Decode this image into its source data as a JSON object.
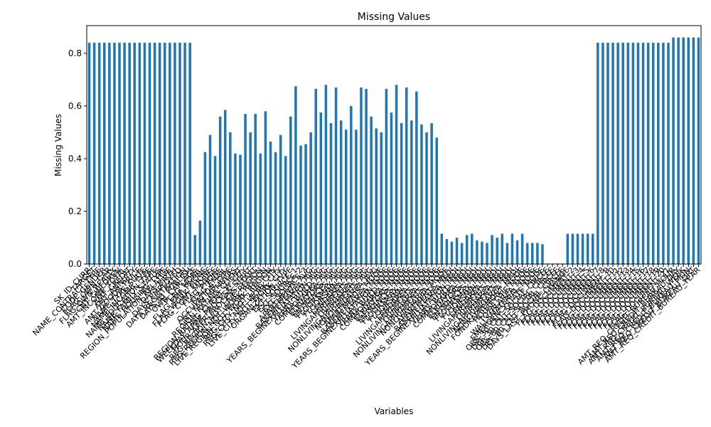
{
  "chart_data": {
    "type": "bar",
    "title": "Missing Values",
    "x_label": "Variables",
    "y_label": "Missing Values",
    "color": "#1f77b4",
    "categories": [
      "SK_ID_CURR",
      "TARGET",
      "NAME_CONTRACT_TYPE",
      "CODE_GENDER",
      "FLAG_OWN_CAR",
      "FLAG_OWN_REALTY",
      "CNT_CHILDREN",
      "AMT_INCOME_TOTAL",
      "AMT_CREDIT",
      "AMT_ANNUITY",
      "AMT_GOODS_PRICE",
      "NAME_TYPE_SUITE",
      "NAME_INCOME_TYPE",
      "NAME_EDUCATION_TYPE",
      "NAME_FAMILY_STATUS",
      "NAME_HOUSING_TYPE",
      "REGION_POPULATION_RELATIVE",
      "DAYS_BIRTH",
      "DAYS_EMPLOYED",
      "DAYS_REGISTRATION",
      "DAYS_ID_PUBLISH",
      "OWN_CAR_AGE",
      "FLAG_MOBIL",
      "FLAG_EMP_PHONE",
      "FLAG_WORK_PHONE",
      "FLAG_CONT_MOBILE",
      "FLAG_PHONE",
      "FLAG_EMAIL",
      "OCCUPATION_TYPE",
      "CNT_FAM_MEMBERS",
      "REGION_RATING_CLIENT",
      "REGION_RATING_CLIENT_W_CITY",
      "WEEKDAY_APPR_PROCESS_START",
      "HOUR_APPR_PROCESS_START",
      "REG_REGION_NOT_LIVE_REGION",
      "REG_REGION_NOT_WORK_REGION",
      "LIVE_REGION_NOT_WORK_REGION",
      "REG_CITY_NOT_LIVE_CITY",
      "REG_CITY_NOT_WORK_CITY",
      "LIVE_CITY_NOT_WORK_CITY",
      "ORGANIZATION_TYPE",
      "EXT_SOURCE_1",
      "EXT_SOURCE_2",
      "EXT_SOURCE_3",
      "APARTMENTS_AVG",
      "BASEMENTAREA_AVG",
      "YEARS_BEGINEXPLUATATION_AVG",
      "YEARS_BUILD_AVG",
      "COMMONAREA_AVG",
      "ELEVATORS_AVG",
      "ENTRANCES_AVG",
      "FLOORSMAX_AVG",
      "FLOORSMIN_AVG",
      "LANDAREA_AVG",
      "LIVINGAPARTMENTS_AVG",
      "LIVINGAREA_AVG",
      "NONLIVINGAPARTMENTS_AVG",
      "NONLIVINGAREA_AVG",
      "APARTMENTS_MODE",
      "BASEMENTAREA_MODE",
      "YEARS_BEGINEXPLUATATION_MODE",
      "YEARS_BUILD_MODE",
      "COMMONAREA_MODE",
      "ELEVATORS_MODE",
      "ENTRANCES_MODE",
      "FLOORSMAX_MODE",
      "FLOORSMIN_MODE",
      "LANDAREA_MODE",
      "LIVINGAPARTMENTS_MODE",
      "LIVINGAREA_MODE",
      "NONLIVINGAPARTMENTS_MODE",
      "NONLIVINGAREA_MODE",
      "APARTMENTS_MEDI",
      "BASEMENTAREA_MEDI",
      "YEARS_BEGINEXPLUATATION_MEDI",
      "YEARS_BUILD_MEDI",
      "COMMONAREA_MEDI",
      "ELEVATORS_MEDI",
      "ENTRANCES_MEDI",
      "FLOORSMAX_MEDI",
      "FLOORSMIN_MEDI",
      "LANDAREA_MEDI",
      "LIVINGAPARTMENTS_MEDI",
      "LIVINGAREA_MEDI",
      "NONLIVINGAPARTMENTS_MEDI",
      "NONLIVINGAREA_MEDI",
      "FONDKAPREMONT_MODE",
      "HOUSETYPE_MODE",
      "TOTALAREA_MODE",
      "WALLSMATERIAL_MODE",
      "EMERGENCYSTATE_MODE",
      "OBS_30_CNT_SOCIAL_CIRCLE",
      "DEF_30_CNT_SOCIAL_CIRCLE",
      "OBS_60_CNT_SOCIAL_CIRCLE",
      "DEF_60_CNT_SOCIAL_CIRCLE",
      "DAYS_LAST_PHONE_CHANGE",
      "FLAG_DOCUMENT_2",
      "FLAG_DOCUMENT_3",
      "FLAG_DOCUMENT_4",
      "FLAG_DOCUMENT_5",
      "FLAG_DOCUMENT_6",
      "FLAG_DOCUMENT_7",
      "FLAG_DOCUMENT_8",
      "FLAG_DOCUMENT_9",
      "FLAG_DOCUMENT_10",
      "FLAG_DOCUMENT_11",
      "FLAG_DOCUMENT_12",
      "FLAG_DOCUMENT_13",
      "FLAG_DOCUMENT_14",
      "FLAG_DOCUMENT_15",
      "FLAG_DOCUMENT_16",
      "FLAG_DOCUMENT_17",
      "FLAG_DOCUMENT_18",
      "FLAG_DOCUMENT_19",
      "FLAG_DOCUMENT_20",
      "FLAG_DOCUMENT_21",
      "AMT_REQ_CREDIT_BUREAU_HOUR",
      "AMT_REQ_CREDIT_BUREAU_DAY",
      "AMT_REQ_CREDIT_BUREAU_WEEK",
      "AMT_REQ_CREDIT_BUREAU_MON",
      "AMT_REQ_CREDIT_BUREAU_QRT",
      "AMT_REQ_CREDIT_BUREAU_YEAR"
    ],
    "values": [
      0.84,
      0.84,
      0.84,
      0.84,
      0.84,
      0.84,
      0.84,
      0.84,
      0.84,
      0.84,
      0.84,
      0.84,
      0.84,
      0.84,
      0.84,
      0.84,
      0.84,
      0.84,
      0.84,
      0.84,
      0.84,
      0.11,
      0.165,
      0.425,
      0.49,
      0.41,
      0.56,
      0.585,
      0.5,
      0.42,
      0.415,
      0.57,
      0.5,
      0.57,
      0.42,
      0.58,
      0.465,
      0.425,
      0.49,
      0.41,
      0.56,
      0.675,
      0.45,
      0.455,
      0.5,
      0.665,
      0.575,
      0.68,
      0.535,
      0.67,
      0.545,
      0.51,
      0.6,
      0.51,
      0.67,
      0.665,
      0.56,
      0.515,
      0.5,
      0.665,
      0.575,
      0.68,
      0.535,
      0.67,
      0.545,
      0.655,
      0.53,
      0.5,
      0.535,
      0.48,
      0.115,
      0.095,
      0.085,
      0.1,
      0.08,
      0.11,
      0.115,
      0.09,
      0.085,
      0.08,
      0.11,
      0.1,
      0.115,
      0.08,
      0.115,
      0.09,
      0.115,
      0.08,
      0.08,
      0.08,
      0.075,
      0.002,
      0.002,
      0.002,
      0.002,
      0.115,
      0.115,
      0.115,
      0.115,
      0.115,
      0.115,
      0.84,
      0.84,
      0.84,
      0.84,
      0.84,
      0.84,
      0.84,
      0.84,
      0.84,
      0.84,
      0.84,
      0.84,
      0.84,
      0.84,
      0.84,
      0.86,
      0.86,
      0.86,
      0.86,
      0.86,
      0.86
    ],
    "ylim": [
      0,
      0.905
    ],
    "yticks": [
      {
        "value": 0,
        "label": "0.0"
      },
      0.2,
      0.4,
      0.6,
      0.8
    ],
    "grid": false
  }
}
